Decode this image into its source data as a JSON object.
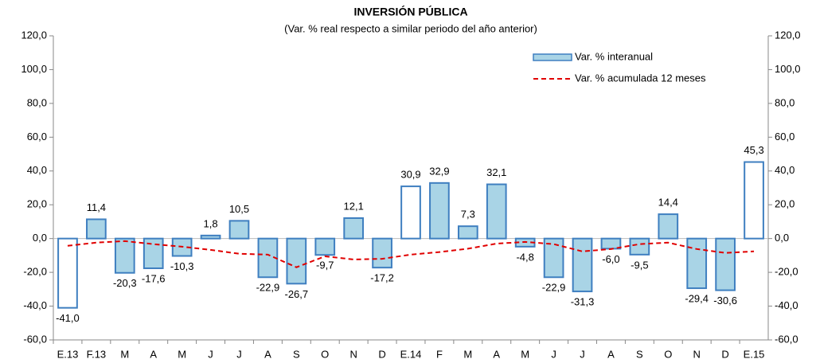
{
  "chart_data": {
    "type": "bar_line",
    "title": "INVERSIÓN PÚBLICA",
    "subtitle": "(Var. % real respecto a similar periodo del año anterior)",
    "categories": [
      "E.13",
      "F.13",
      "M",
      "A",
      "M",
      "J",
      "J",
      "A",
      "S",
      "O",
      "N",
      "D",
      "E.14",
      "F",
      "M",
      "A",
      "M",
      "J",
      "J",
      "A",
      "S",
      "O",
      "N",
      "D",
      "E.15"
    ],
    "series": [
      {
        "name": "Var. % interanual",
        "type": "bar",
        "color": "#a9d4e6",
        "edge_color": "#3f7fc0",
        "bar_colors": [
          "#ffffff",
          "#a9d4e6",
          "#a9d4e6",
          "#a9d4e6",
          "#a9d4e6",
          "#a9d4e6",
          "#a9d4e6",
          "#a9d4e6",
          "#a9d4e6",
          "#a9d4e6",
          "#a9d4e6",
          "#a9d4e6",
          "#ffffff",
          "#a9d4e6",
          "#a9d4e6",
          "#a9d4e6",
          "#a9d4e6",
          "#a9d4e6",
          "#a9d4e6",
          "#a9d4e6",
          "#a9d4e6",
          "#a9d4e6",
          "#a9d4e6",
          "#a9d4e6",
          "#ffffff"
        ],
        "values": [
          -41.0,
          11.4,
          -20.3,
          -17.6,
          -10.3,
          1.8,
          10.5,
          -22.9,
          -26.7,
          -9.7,
          12.1,
          -17.2,
          30.9,
          32.9,
          7.3,
          32.1,
          -4.8,
          -22.9,
          -31.3,
          -6.0,
          -9.5,
          14.4,
          -29.4,
          -30.6,
          45.3
        ],
        "value_labels": [
          "-41,0",
          "11,4",
          "-20,3",
          "-17,6",
          "-10,3",
          "1,8",
          "10,5",
          "-22,9",
          "-26,7",
          "-9,7",
          "12,1",
          "-17,2",
          "30,9",
          "32,9",
          "7,3",
          "32,1",
          "-4,8",
          "-22,9",
          "-31,3",
          "-6,0",
          "-9,5",
          "14,4",
          "-29,4",
          "-30,6",
          "45,3"
        ]
      },
      {
        "name": "Var. % acumulada 12 meses",
        "type": "line",
        "color": "#e00000",
        "dashed": true,
        "values": [
          -4.3,
          -2.4,
          -1.5,
          -3.3,
          -4.8,
          -6.7,
          -9.0,
          -9.5,
          -17.0,
          -10.5,
          -12.4,
          -12.0,
          -9.5,
          -8.0,
          -6.0,
          -3.0,
          -2.0,
          -3.3,
          -7.6,
          -6.2,
          -3.3,
          -2.4,
          -6.2,
          -8.5,
          -7.6
        ]
      }
    ],
    "ylim": [
      -60,
      120
    ],
    "yticks": [
      {
        "value": -60,
        "label": "-60,0"
      },
      {
        "value": -40,
        "label": "-40,0"
      },
      {
        "value": -20,
        "label": "-20,0"
      },
      {
        "value": 0,
        "label": "0,0"
      },
      {
        "value": 20,
        "label": "20,0"
      },
      {
        "value": 40,
        "label": "40,0"
      },
      {
        "value": 60,
        "label": "60,0"
      },
      {
        "value": 80,
        "label": "80,0"
      },
      {
        "value": 100,
        "label": "100,0"
      },
      {
        "value": 120,
        "label": "120,0"
      }
    ],
    "y2lim": [
      -60,
      120
    ],
    "y2ticks": [
      {
        "value": -60,
        "label": "-60,0"
      },
      {
        "value": -40,
        "label": "-40,0"
      },
      {
        "value": -20,
        "label": "-20,0"
      },
      {
        "value": 0,
        "label": "0,0"
      },
      {
        "value": 20,
        "label": "20,0"
      },
      {
        "value": 40,
        "label": "40,0"
      },
      {
        "value": 60,
        "label": "60,0"
      },
      {
        "value": 80,
        "label": "80,0"
      },
      {
        "value": 100,
        "label": "100,0"
      },
      {
        "value": 120,
        "label": "120,0"
      }
    ],
    "legend": "top-right"
  }
}
